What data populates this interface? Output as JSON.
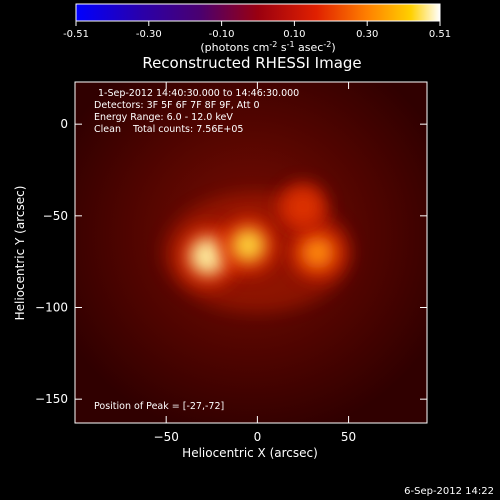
{
  "chart_data": {
    "type": "heatmap",
    "title": "Reconstructed RHESSI Image",
    "xlabel": "Heliocentric X (arcsec)",
    "ylabel": "Heliocentric Y (arcsec)",
    "xlim": [
      -100,
      93
    ],
    "ylim": [
      -163,
      23
    ],
    "xticks": [
      -50,
      0,
      50
    ],
    "yticks": [
      0,
      -50,
      -100,
      -150
    ],
    "colorbar": {
      "ticks": [
        "-0.51",
        "-0.30",
        "-0.10",
        "0.10",
        "0.30",
        "0.51"
      ],
      "min": -0.51,
      "max": 0.51,
      "unit_label_parts": [
        "(photons cm",
        "-2",
        " s",
        "-1",
        " asec",
        "-2",
        ")"
      ]
    },
    "annotations": [
      "1-Sep-2012 14:40:30.000 to 14:46:30.000",
      "Detectors: 3F 5F 6F 7F 8F 9F, Att 0",
      "Energy Range: 6.0 - 12.0 keV",
      "Clean    Total counts: 7.56E+05"
    ],
    "peak_text": "Position of Peak = [-27,-72]",
    "sources": [
      {
        "x": -27,
        "y": -72,
        "intensity": 0.51
      },
      {
        "x": -5,
        "y": -66,
        "intensity": 0.4
      },
      {
        "x": 33,
        "y": -70,
        "intensity": 0.34
      },
      {
        "x": 25,
        "y": -45,
        "intensity": 0.22
      }
    ],
    "grid": false
  },
  "footer_date": "6-Sep-2012 14:22"
}
